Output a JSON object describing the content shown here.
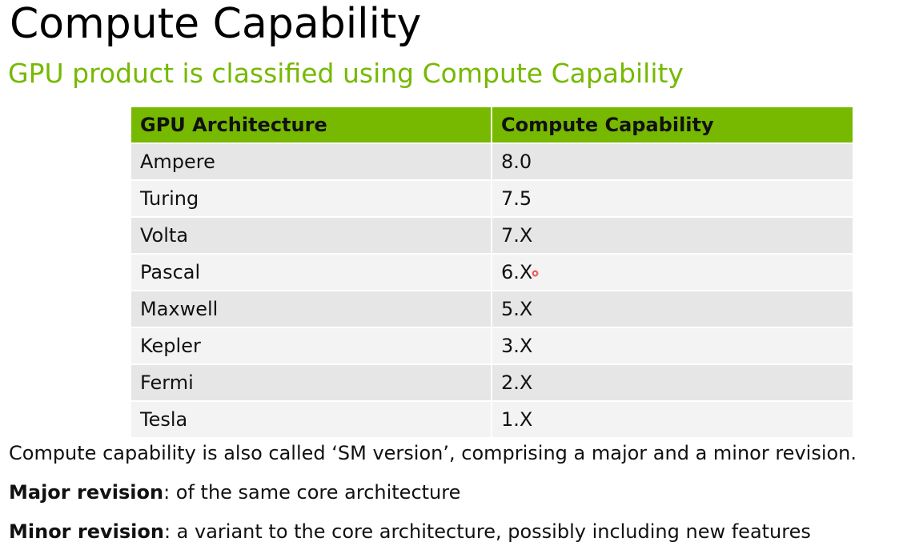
{
  "slide": {
    "title": "Compute Capability",
    "subtitle": "GPU product is classified using Compute Capability"
  },
  "table": {
    "headers": [
      "GPU Architecture",
      "Compute Capability"
    ],
    "rows": [
      {
        "architecture": "Ampere",
        "capability": "8.0"
      },
      {
        "architecture": "Turing",
        "capability": "7.5"
      },
      {
        "architecture": "Volta",
        "capability": "7.X"
      },
      {
        "architecture": "Pascal",
        "capability": "6.X"
      },
      {
        "architecture": "Maxwell",
        "capability": "5.X"
      },
      {
        "architecture": "Kepler",
        "capability": "3.X"
      },
      {
        "architecture": "Fermi",
        "capability": "2.X"
      },
      {
        "architecture": "Tesla",
        "capability": "1.X"
      }
    ]
  },
  "notes": {
    "sm_version": "Compute capability is also called ‘SM version’, comprising a major and a minor revision.",
    "major_label": "Major revision",
    "major_text": ": of the same core architecture",
    "minor_label": "Minor revision",
    "minor_text": ": a variant to the core architecture, possibly including new features"
  },
  "colors": {
    "accent": "#76b900",
    "row_odd": "#e6e6e6",
    "row_even": "#f3f3f3",
    "pointer": "#e8423a"
  },
  "pointer_icon": "laser-pointer-icon"
}
